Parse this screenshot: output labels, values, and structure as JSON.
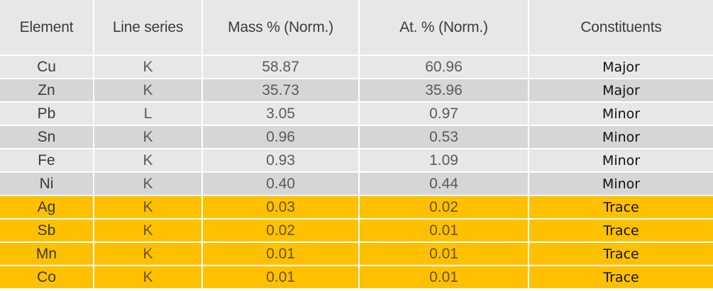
{
  "table": {
    "headers": {
      "element": "Element",
      "line_series": "Line series",
      "mass": "Mass % (Norm.)",
      "atomic": "At. % (Norm.)",
      "constituents": "Constituents"
    },
    "rows": [
      {
        "element": "Cu",
        "line": "K",
        "mass": "58.87",
        "at": "60.96",
        "constituent": "Major"
      },
      {
        "element": "Zn",
        "line": "K",
        "mass": "35.73",
        "at": "35.96",
        "constituent": "Major"
      },
      {
        "element": "Pb",
        "line": "L",
        "mass": "3.05",
        "at": "0.97",
        "constituent": "Minor"
      },
      {
        "element": "Sn",
        "line": "K",
        "mass": "0.96",
        "at": "0.53",
        "constituent": "Minor"
      },
      {
        "element": "Fe",
        "line": "K",
        "mass": "0.93",
        "at": "1.09",
        "constituent": "Minor"
      },
      {
        "element": "Ni",
        "line": "K",
        "mass": "0.40",
        "at": "0.44",
        "constituent": "Minor"
      },
      {
        "element": "Ag",
        "line": "K",
        "mass": "0.03",
        "at": "0.02",
        "constituent": "Trace"
      },
      {
        "element": "Sb",
        "line": "K",
        "mass": "0.02",
        "at": "0.01",
        "constituent": "Trace"
      },
      {
        "element": "Mn",
        "line": "K",
        "mass": "0.01",
        "at": "0.01",
        "constituent": "Trace"
      },
      {
        "element": "Co",
        "line": "K",
        "mass": "0.01",
        "at": "0.01",
        "constituent": "Trace"
      }
    ]
  },
  "colors": {
    "header_bg": "#e6e7e8",
    "row_light": "#e6e7e9",
    "row_dark": "#d6d6d6",
    "trace_highlight": "#ffc000"
  }
}
